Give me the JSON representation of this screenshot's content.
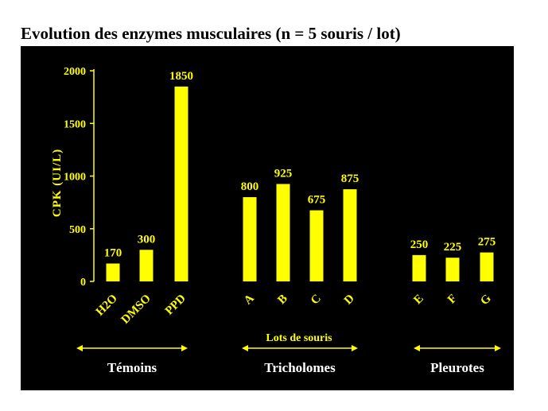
{
  "chart_data": {
    "type": "bar",
    "title": "Evolution des enzymes musculaires (n = 5 souris / lot)",
    "ylabel": "CPK (UI/L)",
    "xlabel": "Lots de souris",
    "ylim": [
      0,
      2000
    ],
    "yticks": [
      0,
      500,
      1000,
      1500,
      2000
    ],
    "categories": [
      "H2O",
      "DMSO",
      "PPD",
      "A",
      "B",
      "C",
      "D",
      "E",
      "F",
      "G"
    ],
    "values": [
      170,
      300,
      1850,
      800,
      925,
      675,
      875,
      250,
      225,
      275
    ],
    "data_labels": [
      "170",
      "300",
      "1850",
      "800",
      "925",
      "675",
      "875",
      "250",
      "225",
      "275"
    ],
    "groups": [
      {
        "label": "Témoins",
        "categories": [
          "H2O",
          "DMSO",
          "PPD"
        ]
      },
      {
        "label": "Tricholomes",
        "categories": [
          "A",
          "B",
          "C",
          "D"
        ]
      },
      {
        "label": "Pleurotes",
        "categories": [
          "E",
          "F",
          "G"
        ]
      }
    ],
    "grid": false,
    "colors": {
      "background": "#000000",
      "bar": "#ffff00",
      "axis_text": "#ffff00",
      "group_text": "#ffffff"
    }
  }
}
